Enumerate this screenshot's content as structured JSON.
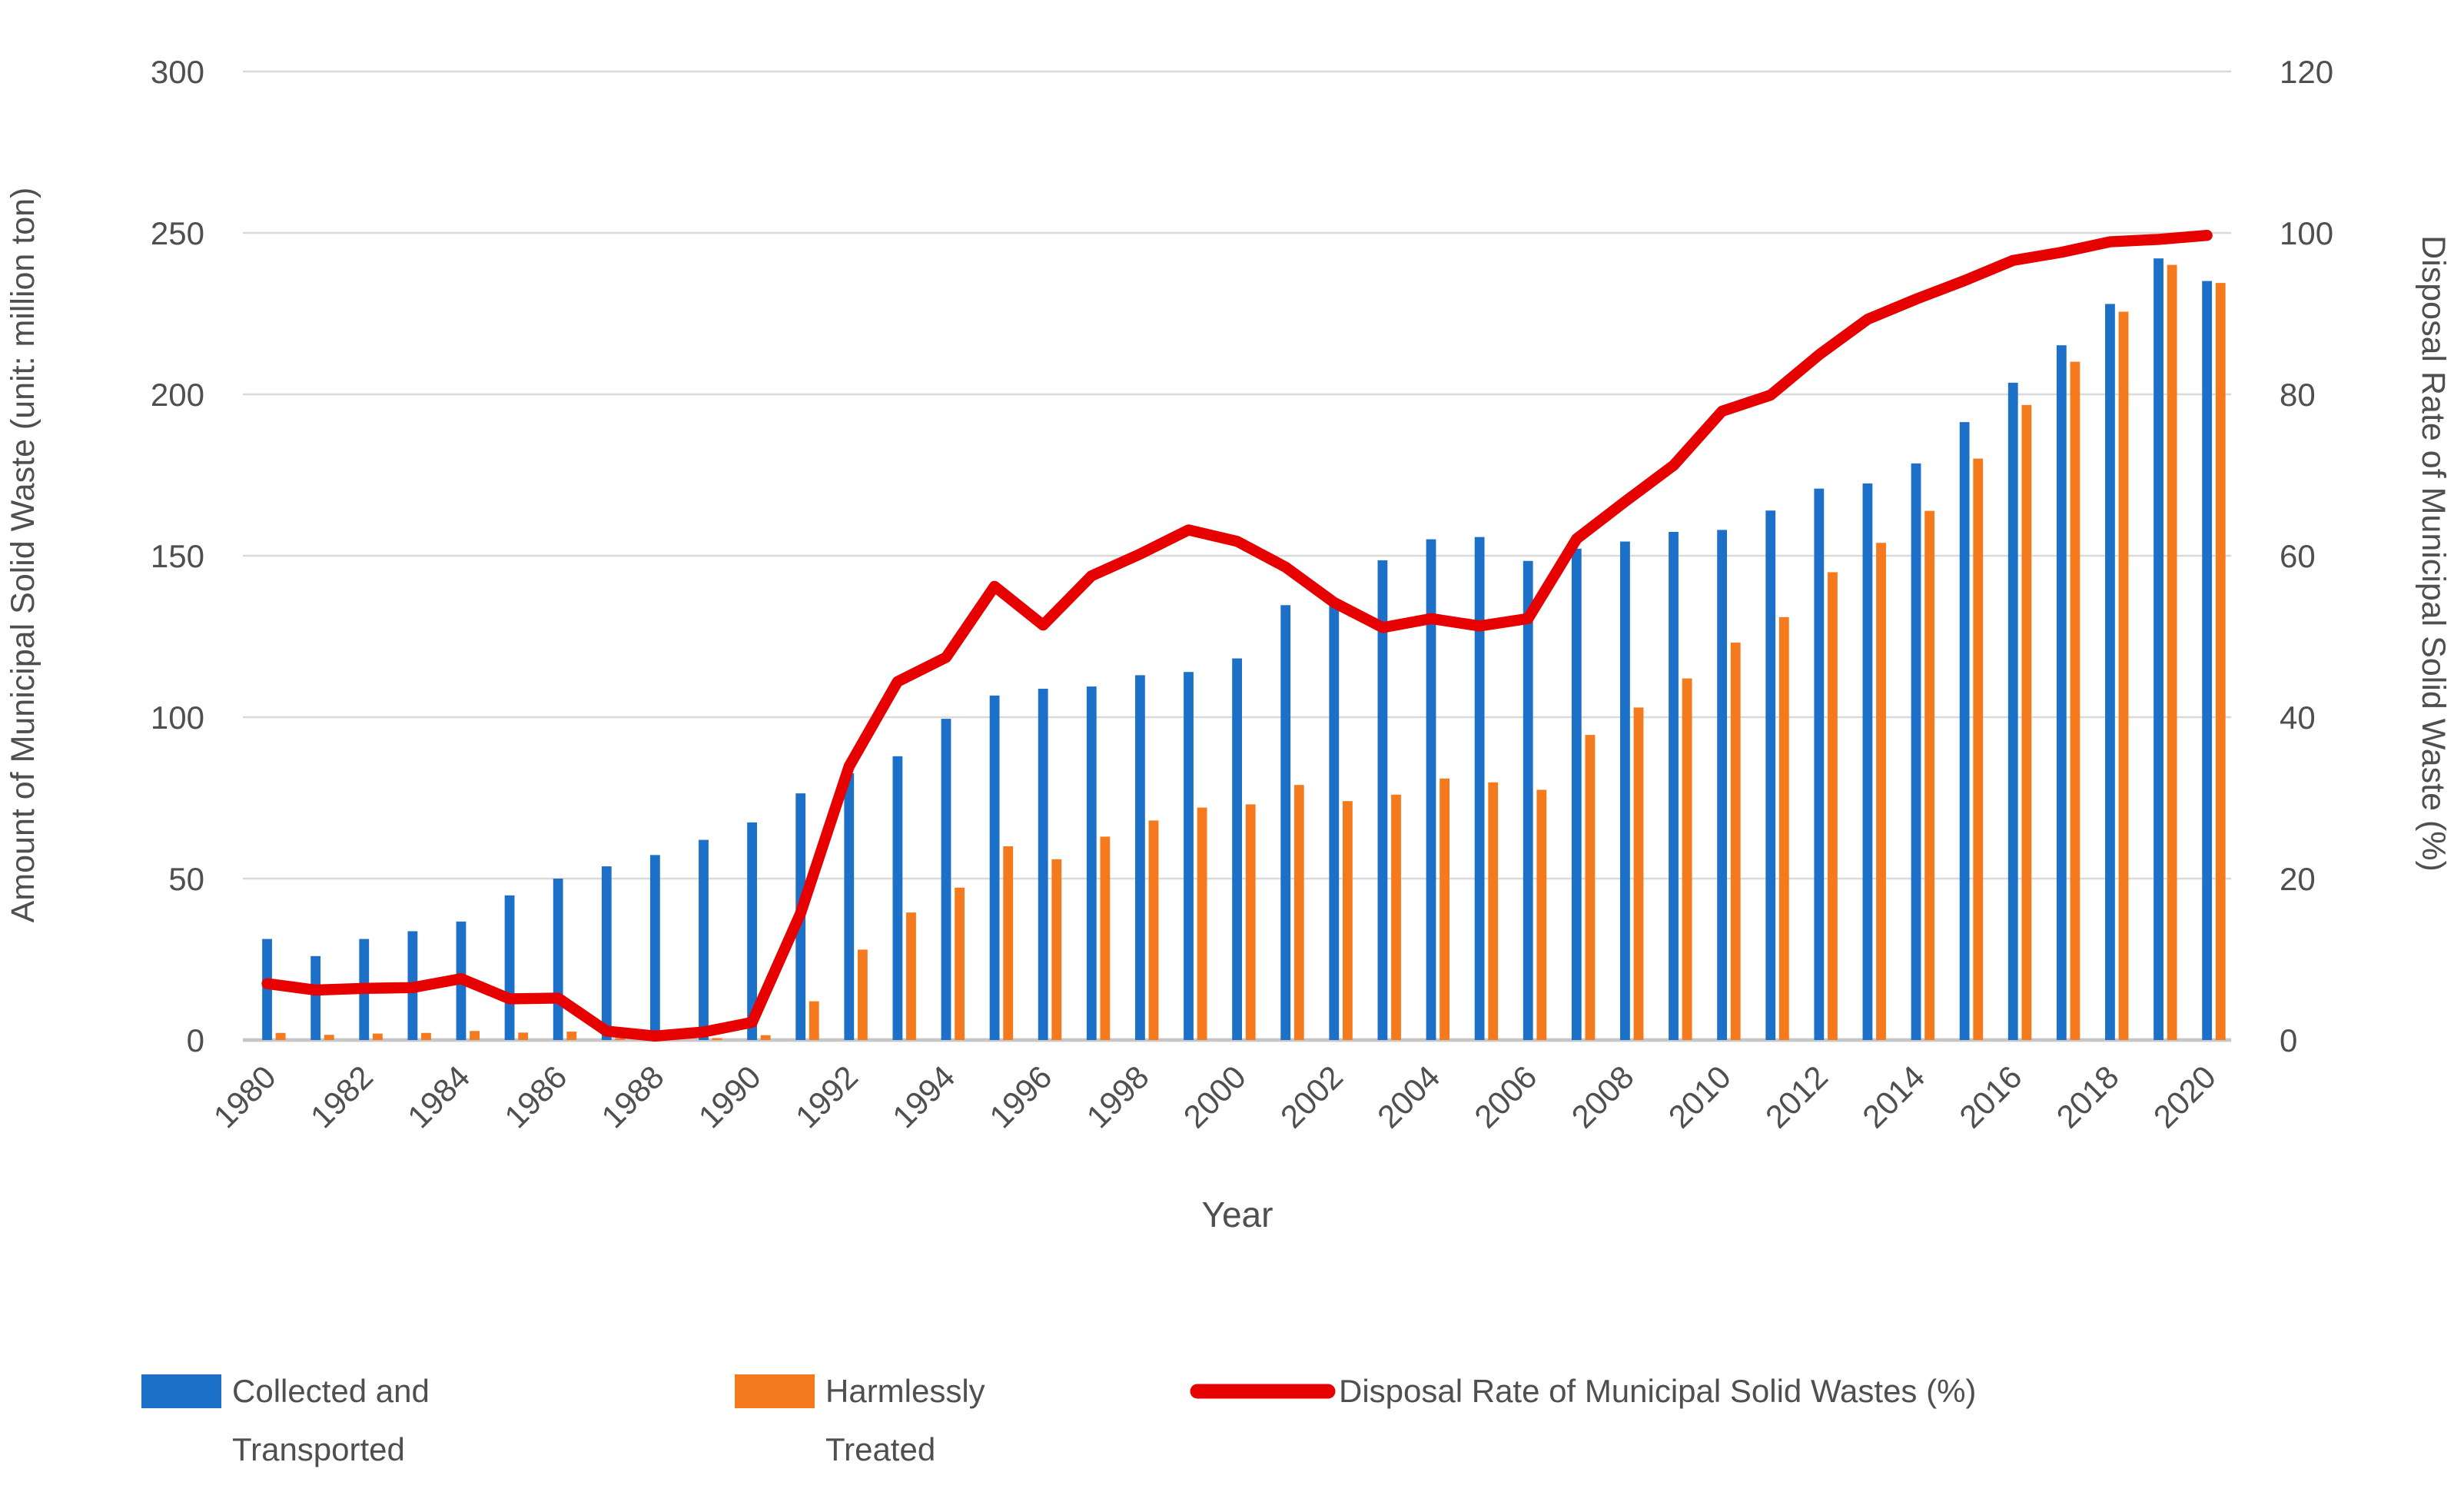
{
  "chart_data": {
    "type": "bar",
    "subtype": "combo-dual-axis-bar-line",
    "title": "",
    "xlabel": "Year",
    "x": [
      1980,
      1981,
      1982,
      1983,
      1984,
      1985,
      1986,
      1987,
      1988,
      1989,
      1990,
      1991,
      1992,
      1993,
      1994,
      1995,
      1996,
      1997,
      1998,
      1999,
      2000,
      2001,
      2002,
      2003,
      2004,
      2005,
      2006,
      2007,
      2008,
      2009,
      2010,
      2011,
      2012,
      2013,
      2014,
      2015,
      2016,
      2017,
      2018,
      2019,
      2020
    ],
    "x_tick_labels": [
      "1980",
      "1982",
      "1984",
      "1986",
      "1988",
      "1990",
      "1992",
      "1994",
      "1996",
      "1998",
      "2000",
      "2002",
      "2004",
      "2006",
      "2008",
      "2010",
      "2012",
      "2014",
      "2016",
      "2018",
      "2020"
    ],
    "axes": {
      "left": {
        "title": "Amount of Municipal Solid Waste (unit: million ton)",
        "min": 0,
        "max": 300,
        "step": 50,
        "tick_labels": [
          "0",
          "50",
          "100",
          "150",
          "200",
          "250",
          "300"
        ]
      },
      "right": {
        "title": "Disposal Rate of Municipal Solid Waste (%)",
        "min": 0,
        "max": 120,
        "step": 20,
        "tick_labels": [
          "0",
          "20",
          "40",
          "60",
          "80",
          "100",
          "120"
        ]
      }
    },
    "grid": true,
    "legend_position": "bottom",
    "series": [
      {
        "name": "Collected and Transported",
        "legend_lines": [
          "Collected and",
          "Transported"
        ],
        "type": "bar",
        "axis": "left",
        "color": "#1D70C8",
        "values": [
          31.3,
          26.0,
          31.3,
          33.7,
          36.7,
          44.8,
          50.0,
          53.8,
          57.3,
          62.0,
          67.4,
          76.4,
          82.6,
          87.9,
          99.5,
          106.7,
          108.8,
          109.5,
          113.0,
          114.0,
          118.2,
          134.7,
          136.5,
          148.6,
          155.1,
          155.8,
          148.4,
          152.2,
          154.4,
          157.4,
          158.0,
          164.0,
          170.8,
          172.4,
          178.6,
          191.4,
          203.6,
          215.2,
          228.0,
          242.1,
          235.1
        ]
      },
      {
        "name": "Harmlessly Treated",
        "legend_lines": [
          "Harmlessly",
          "Treated"
        ],
        "type": "bar",
        "axis": "left",
        "color": "#F5791D",
        "values": [
          2.2,
          1.6,
          2.0,
          2.2,
          2.8,
          2.3,
          2.6,
          0.6,
          0.3,
          0.6,
          1.5,
          12.0,
          28.0,
          39.5,
          47.2,
          60.0,
          56.0,
          63.0,
          68.0,
          72.0,
          73.0,
          79.0,
          74.0,
          76.0,
          81.0,
          79.8,
          77.5,
          94.5,
          103.0,
          112.0,
          123.1,
          131.0,
          144.9,
          154.0,
          163.9,
          180.1,
          196.7,
          210.1,
          225.6,
          240.1,
          234.5
        ]
      },
      {
        "name": "Disposal Rate of Municipal Solid Wastes (%)",
        "legend_lines": [
          "Disposal Rate of Municipal Solid Wastes (%)"
        ],
        "type": "line",
        "axis": "right",
        "color": "#E60000",
        "values": [
          7.0,
          6.2,
          6.4,
          6.5,
          7.6,
          5.1,
          5.2,
          1.1,
          0.5,
          1.0,
          2.2,
          15.7,
          33.9,
          44.4,
          47.4,
          56.2,
          51.4,
          57.5,
          60.2,
          63.2,
          61.8,
          58.6,
          54.2,
          51.1,
          52.2,
          51.3,
          52.2,
          62.1,
          66.7,
          71.2,
          77.9,
          79.9,
          84.9,
          89.3,
          91.8,
          94.1,
          96.6,
          97.6,
          98.9,
          99.2,
          99.7
        ]
      }
    ]
  },
  "style": {
    "background": "#FFFFFF",
    "gridline_color": "#D9D9D9",
    "baseline_color": "#C6C6C6",
    "text_color": "#4F4F4F"
  }
}
